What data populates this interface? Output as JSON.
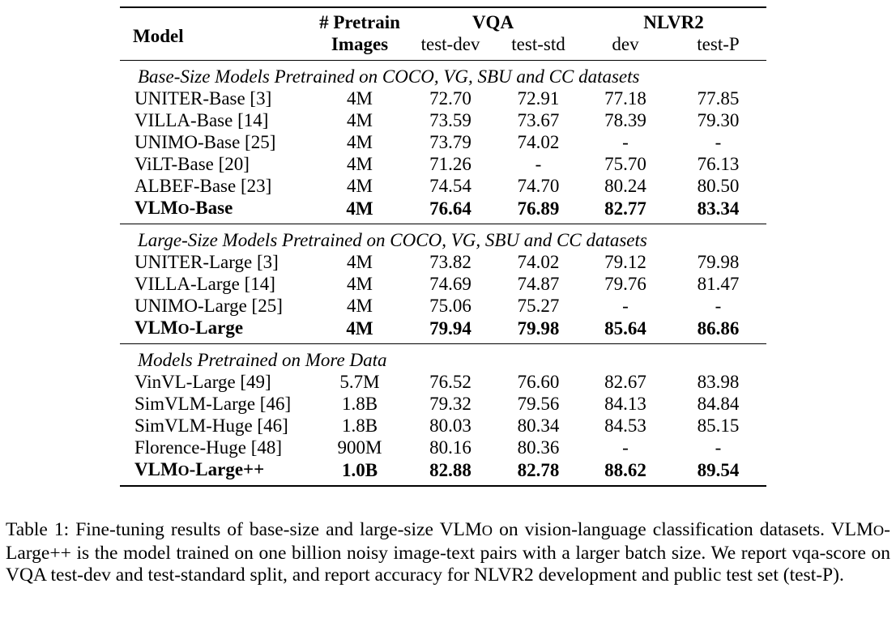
{
  "table": {
    "header": {
      "model": "Model",
      "pretrain_line1": "# Pretrain",
      "pretrain_line2": "Images",
      "vqa": "VQA",
      "nlvr2": "NLVR2",
      "vqa_test_dev": "test-dev",
      "vqa_test_std": "test-std",
      "nlvr2_dev": "dev",
      "nlvr2_test_p": "test-P"
    },
    "sections": [
      {
        "title": "Base-Size Models Pretrained on COCO, VG, SBU and CC datasets",
        "rows": [
          {
            "model": "UNITER-Base [3]",
            "images": "4M",
            "vqa_dev": "72.70",
            "vqa_std": "72.91",
            "nlvr_dev": "77.18",
            "nlvr_test": "77.85",
            "bold": false
          },
          {
            "model": "VILLA-Base [14]",
            "images": "4M",
            "vqa_dev": "73.59",
            "vqa_std": "73.67",
            "nlvr_dev": "78.39",
            "nlvr_test": "79.30",
            "bold": false
          },
          {
            "model": "UNIMO-Base [25]",
            "images": "4M",
            "vqa_dev": "73.79",
            "vqa_std": "74.02",
            "nlvr_dev": "-",
            "nlvr_test": "-",
            "bold": false
          },
          {
            "model": "ViLT-Base [20]",
            "images": "4M",
            "vqa_dev": "71.26",
            "vqa_std": "-",
            "nlvr_dev": "75.70",
            "nlvr_test": "76.13",
            "bold": false
          },
          {
            "model": "ALBEF-Base [23]",
            "images": "4M",
            "vqa_dev": "74.54",
            "vqa_std": "74.70",
            "nlvr_dev": "80.24",
            "nlvr_test": "80.50",
            "bold": false
          },
          {
            "model": "VLMo-Base",
            "images": "4M",
            "vqa_dev": "76.64",
            "vqa_std": "76.89",
            "nlvr_dev": "82.77",
            "nlvr_test": "83.34",
            "bold": true
          }
        ]
      },
      {
        "title": "Large-Size Models Pretrained on COCO, VG, SBU and CC datasets",
        "rows": [
          {
            "model": "UNITER-Large [3]",
            "images": "4M",
            "vqa_dev": "73.82",
            "vqa_std": "74.02",
            "nlvr_dev": "79.12",
            "nlvr_test": "79.98",
            "bold": false
          },
          {
            "model": "VILLA-Large [14]",
            "images": "4M",
            "vqa_dev": "74.69",
            "vqa_std": "74.87",
            "nlvr_dev": "79.76",
            "nlvr_test": "81.47",
            "bold": false
          },
          {
            "model": "UNIMO-Large [25]",
            "images": "4M",
            "vqa_dev": "75.06",
            "vqa_std": "75.27",
            "nlvr_dev": "-",
            "nlvr_test": "-",
            "bold": false
          },
          {
            "model": "VLMo-Large",
            "images": "4M",
            "vqa_dev": "79.94",
            "vqa_std": "79.98",
            "nlvr_dev": "85.64",
            "nlvr_test": "86.86",
            "bold": true
          }
        ]
      },
      {
        "title": "Models Pretrained on More Data",
        "rows": [
          {
            "model": "VinVL-Large [49]",
            "images": "5.7M",
            "vqa_dev": "76.52",
            "vqa_std": "76.60",
            "nlvr_dev": "82.67",
            "nlvr_test": "83.98",
            "bold": false
          },
          {
            "model": "SimVLM-Large [46]",
            "images": "1.8B",
            "vqa_dev": "79.32",
            "vqa_std": "79.56",
            "nlvr_dev": "84.13",
            "nlvr_test": "84.84",
            "bold": false
          },
          {
            "model": "SimVLM-Huge [46]",
            "images": "1.8B",
            "vqa_dev": "80.03",
            "vqa_std": "80.34",
            "nlvr_dev": "84.53",
            "nlvr_test": "85.15",
            "bold": false
          },
          {
            "model": "Florence-Huge [48]",
            "images": "900M",
            "vqa_dev": "80.16",
            "vqa_std": "80.36",
            "nlvr_dev": "-",
            "nlvr_test": "-",
            "bold": false
          },
          {
            "model": "VLMo-Large++",
            "images": "1.0B",
            "vqa_dev": "82.88",
            "vqa_std": "82.78",
            "nlvr_dev": "88.62",
            "nlvr_test": "89.54",
            "bold": true
          }
        ]
      }
    ]
  },
  "caption": "Table 1: Fine-tuning results of base-size and large-size VLMo on vision-language classification datasets. VLMo-Large++ is the model trained on one billion noisy image-text pairs with a larger batch size. We report vqa-score on VQA test-dev and test-standard split, and report accuracy for NLVR2 development and public test set (test-P)."
}
